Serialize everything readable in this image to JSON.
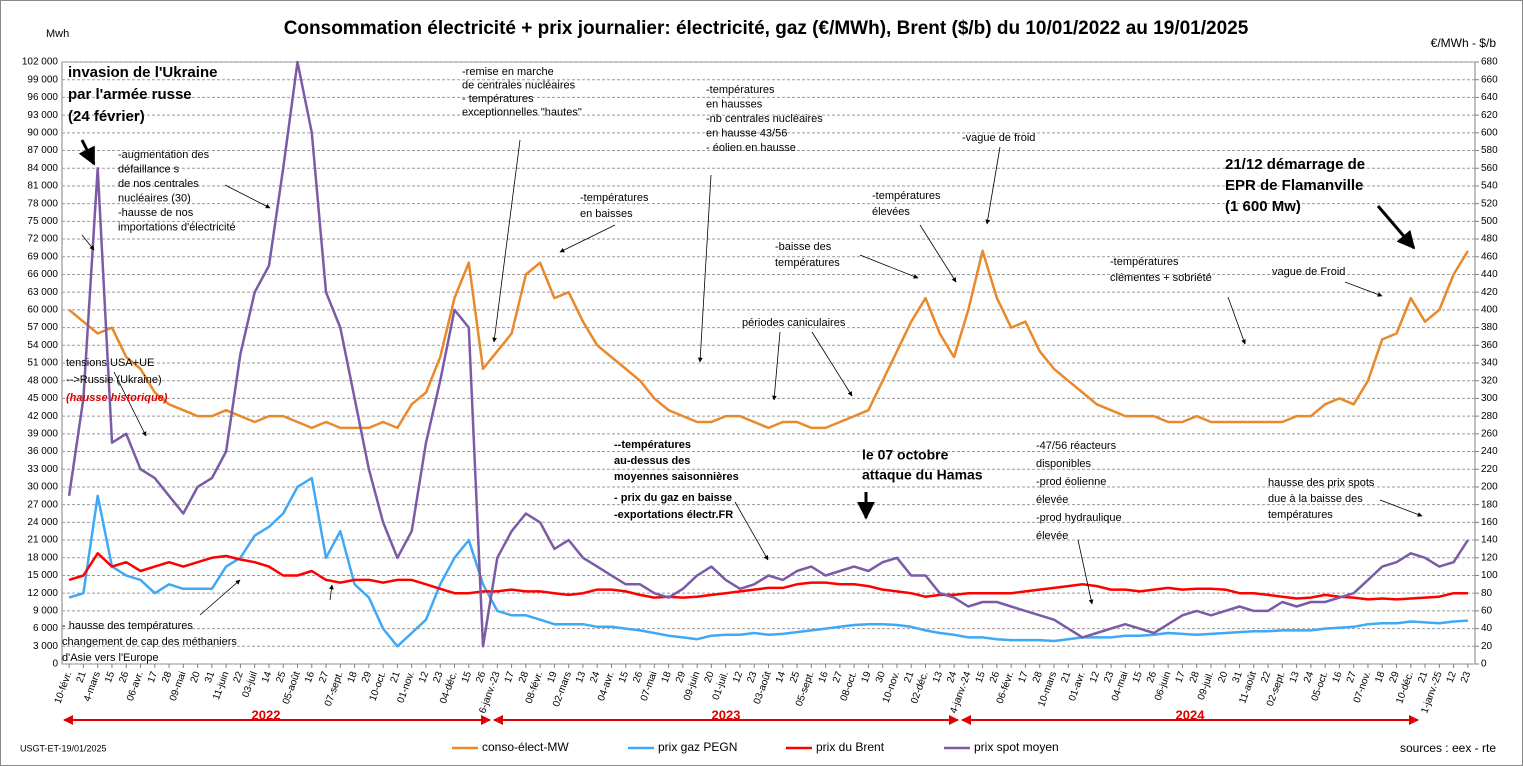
{
  "chart_data": {
    "type": "line",
    "title": "Consommation électricité + prix journalier: électricité, gaz (€/MWh), Brent ($/b) du 10/01/2022 au  19/01/2025",
    "y_label": "Mwh",
    "y2_label": "€/MWh - $/b",
    "categories": [
      "10-févr.",
      "21",
      "4-mars",
      "15",
      "26",
      "06-avr.",
      "17",
      "28",
      "09-mai",
      "20",
      "31",
      "11-juin",
      "22",
      "03-juil",
      "14",
      "25",
      "05-août",
      "16",
      "27",
      "07-sept.",
      "18",
      "29",
      "10-oct.",
      "21",
      "01-nov.",
      "12",
      "23",
      "04-déc.",
      "15",
      "26",
      "6-janv.-23",
      "17",
      "28",
      "08-févr.",
      "19",
      "02-mars",
      "13",
      "24",
      "04-avr.",
      "15",
      "26",
      "07-mai",
      "18",
      "29",
      "09-juin",
      "20",
      "01-juil.",
      "12",
      "23",
      "03-août",
      "14",
      "25",
      "05-sept.",
      "16",
      "27",
      "08-oct.",
      "19",
      "30",
      "10-nov.",
      "21",
      "02-déc.",
      "13",
      "24",
      "4-janv.-24",
      "15",
      "26",
      "06-févr.",
      "17",
      "28",
      "10-mars",
      "21",
      "01-avr.",
      "12",
      "23",
      "04-mai",
      "15",
      "26",
      "06-juin",
      "17",
      "28",
      "09-juil.",
      "20",
      "31",
      "11-août",
      "22",
      "02-sept.",
      "13",
      "24",
      "05-oct.",
      "16",
      "27",
      "07-nov.",
      "18",
      "29",
      "10-déc.",
      "21",
      "1-janv.-25",
      "12",
      "23"
    ],
    "series": [
      {
        "name": "conso-élect-MW",
        "color": "#e8892b",
        "values": [
          60000,
          58000,
          56000,
          57000,
          52000,
          50000,
          46000,
          44000,
          43000,
          42000,
          42000,
          43000,
          42000,
          41000,
          42000,
          42000,
          41000,
          40000,
          41000,
          40000,
          40000,
          40000,
          41000,
          40000,
          44000,
          46000,
          52000,
          62000,
          68000,
          50000,
          53000,
          56000,
          66000,
          68000,
          62000,
          63000,
          58000,
          54000,
          52000,
          50000,
          48000,
          45000,
          43000,
          42000,
          41000,
          41000,
          42000,
          42000,
          41000,
          40000,
          41000,
          41000,
          40000,
          40000,
          41000,
          42000,
          43000,
          48000,
          53000,
          58000,
          62000,
          56000,
          52000,
          60000,
          70000,
          62000,
          57000,
          58000,
          53000,
          50000,
          48000,
          46000,
          44000,
          43000,
          42000,
          42000,
          42000,
          41000,
          41000,
          42000,
          41000,
          41000,
          41000,
          41000,
          41000,
          41000,
          42000,
          42000,
          44000,
          45000,
          44000,
          48000,
          55000,
          56000,
          62000,
          58000,
          60000,
          66000,
          70000
        ]
      },
      {
        "name": "prix gaz PEGN",
        "color": "#3fa9f5",
        "axis": "y2",
        "values": [
          75,
          80,
          190,
          110,
          100,
          95,
          80,
          90,
          85,
          85,
          85,
          110,
          120,
          145,
          155,
          170,
          200,
          210,
          120,
          150,
          90,
          75,
          40,
          20,
          35,
          50,
          90,
          120,
          140,
          90,
          60,
          55,
          55,
          50,
          45,
          45,
          45,
          42,
          42,
          40,
          38,
          35,
          32,
          30,
          28,
          32,
          33,
          33,
          35,
          33,
          34,
          36,
          38,
          40,
          42,
          44,
          45,
          45,
          44,
          42,
          38,
          35,
          33,
          30,
          30,
          28,
          27,
          27,
          27,
          26,
          28,
          30,
          30,
          30,
          32,
          32,
          33,
          35,
          34,
          33,
          34,
          35,
          36,
          37,
          37,
          38,
          38,
          38,
          40,
          41,
          42,
          45,
          46,
          46,
          48,
          47,
          46,
          48,
          49
        ]
      },
      {
        "name": "prix du Brent",
        "color": "#ff0000",
        "axis": "y2",
        "values": [
          95,
          100,
          125,
          110,
          115,
          105,
          110,
          115,
          110,
          115,
          120,
          122,
          118,
          115,
          110,
          100,
          100,
          105,
          95,
          92,
          95,
          95,
          92,
          95,
          95,
          90,
          85,
          80,
          80,
          82,
          82,
          84,
          82,
          82,
          80,
          78,
          80,
          84,
          84,
          82,
          78,
          75,
          76,
          75,
          76,
          78,
          80,
          82,
          84,
          86,
          86,
          90,
          92,
          92,
          90,
          90,
          88,
          84,
          82,
          80,
          76,
          78,
          78,
          80,
          80,
          80,
          80,
          82,
          84,
          86,
          88,
          90,
          88,
          84,
          84,
          82,
          84,
          86,
          84,
          85,
          85,
          84,
          80,
          80,
          78,
          76,
          74,
          75,
          78,
          76,
          75,
          73,
          74,
          73,
          74,
          75,
          76,
          80,
          80
        ]
      },
      {
        "name": "prix spot moyen",
        "color": "#7b5ba6",
        "axis": "y2",
        "values": [
          190,
          300,
          560,
          250,
          260,
          220,
          210,
          190,
          170,
          200,
          210,
          240,
          350,
          420,
          450,
          560,
          680,
          600,
          420,
          380,
          300,
          220,
          160,
          120,
          150,
          250,
          320,
          400,
          380,
          20,
          120,
          150,
          170,
          160,
          130,
          140,
          120,
          110,
          100,
          90,
          90,
          80,
          75,
          85,
          100,
          110,
          95,
          85,
          90,
          100,
          95,
          105,
          110,
          100,
          105,
          110,
          105,
          115,
          120,
          100,
          100,
          80,
          75,
          65,
          70,
          70,
          65,
          60,
          55,
          50,
          40,
          30,
          35,
          40,
          45,
          40,
          35,
          45,
          55,
          60,
          55,
          60,
          65,
          60,
          60,
          70,
          65,
          70,
          70,
          75,
          80,
          95,
          110,
          115,
          125,
          120,
          110,
          115,
          140
        ]
      }
    ],
    "ylim": [
      0,
      102000
    ],
    "yticks": [
      0,
      {
        "value": 3000,
        "label": "3 000"
      },
      {
        "value": 6000,
        "label": "6 000"
      },
      {
        "value": 9000,
        "label": "9 000"
      },
      {
        "value": 12000,
        "label": "12 000"
      },
      {
        "value": 15000,
        "label": "15 000"
      },
      {
        "value": 18000,
        "label": "18 000"
      },
      {
        "value": 21000,
        "label": "21 000"
      },
      {
        "value": 24000,
        "label": "24 000"
      },
      {
        "value": 27000,
        "label": "27 000"
      },
      {
        "value": 30000,
        "label": "30 000"
      },
      {
        "value": 33000,
        "label": "33 000"
      },
      {
        "value": 36000,
        "label": "36 000"
      },
      {
        "value": 39000,
        "label": "39 000"
      },
      {
        "value": 42000,
        "label": "42 000"
      },
      {
        "value": 45000,
        "label": "45 000"
      },
      {
        "value": 48000,
        "label": "48 000"
      },
      {
        "value": 51000,
        "label": "51 000"
      },
      {
        "value": 54000,
        "label": "54 000"
      },
      {
        "value": 57000,
        "label": "57 000"
      },
      {
        "value": 60000,
        "label": "60 000"
      },
      {
        "value": 63000,
        "label": "63 000"
      },
      {
        "value": 66000,
        "label": "66 000"
      },
      {
        "value": 69000,
        "label": "69 000"
      },
      {
        "value": 72000,
        "label": "72 000"
      },
      {
        "value": 75000,
        "label": "75 000"
      },
      {
        "value": 78000,
        "label": "78 000"
      },
      {
        "value": 81000,
        "label": "81 000"
      },
      {
        "value": 84000,
        "label": "84 000"
      },
      {
        "value": 87000,
        "label": "87 000"
      },
      {
        "value": 90000,
        "label": "90 000"
      },
      {
        "value": 93000,
        "label": "93 000"
      },
      {
        "value": 96000,
        "label": "96 000"
      },
      {
        "value": 99000,
        "label": "99 000"
      },
      {
        "value": 102000,
        "label": "102 000"
      }
    ],
    "y2lim": [
      0,
      680
    ],
    "y2ticks": [
      0,
      20,
      40,
      60,
      80,
      100,
      120,
      140,
      160,
      180,
      200,
      220,
      240,
      260,
      280,
      300,
      320,
      340,
      360,
      380,
      400,
      420,
      440,
      460,
      480,
      500,
      520,
      540,
      560,
      580,
      600,
      620,
      640,
      660,
      680
    ],
    "grid": true,
    "legend": "bottom",
    "years": [
      "2022",
      "2023",
      "2024"
    ],
    "annotations": [
      [
        "invasion de l'Ukraine",
        "par l'armée russe",
        "(24 février)"
      ],
      [
        "-augmentation  des",
        "défaillance s",
        "de nos centrales",
        "nucléaires (30)",
        "-hausse de nos",
        "importations d'électricité"
      ],
      [
        "-remise en marche",
        "de centrales nucléaires",
        "- températures",
        "exceptionnelles \"hautes\""
      ],
      [
        "-températures",
        "en hausses",
        "-nb centrales nucléaires",
        "en hausse 43/56",
        "- éolien en hausse"
      ],
      [
        "-températures",
        "en baisses"
      ],
      [
        "-vague de froid"
      ],
      [
        "-températures",
        "élevées"
      ],
      [
        "-baisse des",
        "températures"
      ],
      [
        "21/12 démarrage de",
        "EPR de Flamanville",
        "(1 600 Mw)"
      ],
      [
        "-températures",
        "clémentes + sobriété"
      ],
      [
        "vague  de Froid"
      ],
      [
        "périodes caniculaires"
      ],
      [
        "tensions USA+UE",
        "-->Russie (Ukraine)"
      ],
      [
        "(hausse historique)"
      ],
      [
        "--températures",
        "au-dessus des",
        "moyennes saisonnières"
      ],
      [
        "- prix du gaz en baisse",
        "-exportations électr.FR"
      ],
      [
        "le 07 octobre",
        "attaque du Hamas"
      ],
      [
        "-47/56 réacteurs",
        "disponibles",
        "-prod éolienne",
        "élevée",
        "-prod hydraulique",
        "élevée"
      ],
      [
        "hausse des prix spots",
        "due à la baisse des",
        "températures"
      ],
      [
        "- hausse des températures",
        "changement de cap des méthaniers",
        "d'Asie vers l'Europe"
      ]
    ],
    "footer_left": "USGT-ET-19/01/2025",
    "footer_right": "sources : eex - rte"
  }
}
